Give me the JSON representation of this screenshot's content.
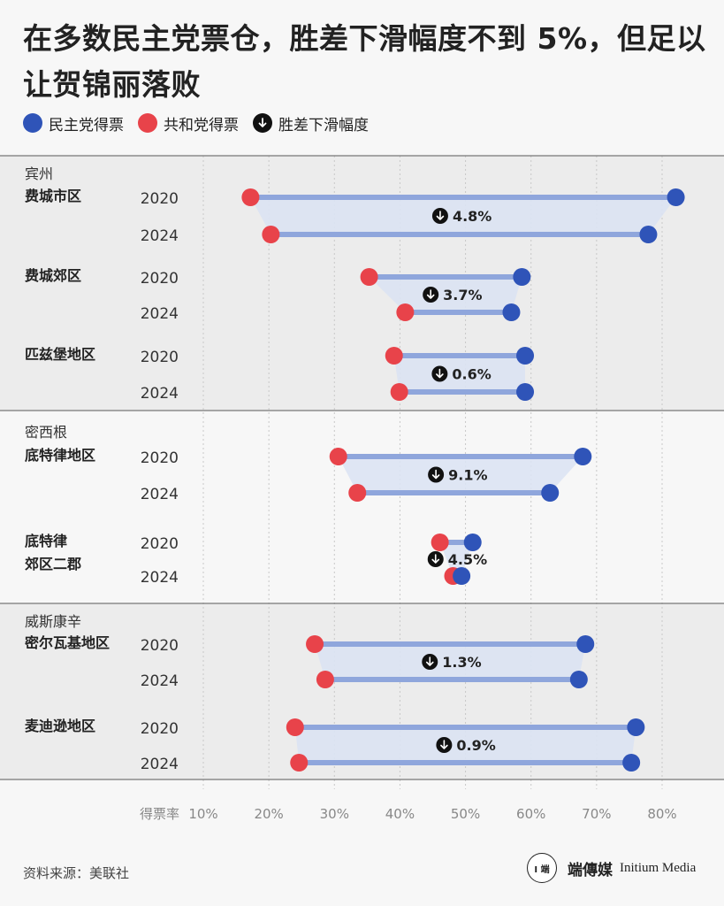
{
  "title": "在多数民主党票仓，胜差下滑幅度不到 5%，但足以让贺锦丽落败",
  "legend": [
    {
      "label": "民主党得票",
      "color": "#2f54b8"
    },
    {
      "label": "共和党得票",
      "color": "#e8434a"
    },
    {
      "label": "胜差下滑幅度",
      "icon": "arrow-down-icon"
    }
  ],
  "colors": {
    "dem": "#2f54b8",
    "rep": "#e8434a",
    "bar": "#8fa6dc",
    "band": "#dce3f3",
    "arrow": "#111111"
  },
  "chart_data": {
    "type": "dumbbell",
    "x_axis_label": "得票率",
    "x_range": [
      10,
      80
    ],
    "x_ticks": [
      "10%",
      "20%",
      "30%",
      "40%",
      "50%",
      "60%",
      "70%",
      "80%"
    ],
    "years": [
      "2020",
      "2024"
    ],
    "groups": [
      {
        "state": "宾州",
        "shaded": true,
        "regions": [
          {
            "name": [
              "费城市区"
            ],
            "dem": [
              82.1,
              77.9
            ],
            "rep": [
              17.2,
              20.3
            ],
            "decline": "4.8%"
          },
          {
            "name": [
              "费城郊区"
            ],
            "dem": [
              58.6,
              57.0
            ],
            "rep": [
              35.3,
              40.8
            ],
            "decline": "3.7%"
          },
          {
            "name": [
              "匹兹堡地区"
            ],
            "dem": [
              59.1,
              59.1
            ],
            "rep": [
              39.1,
              39.9
            ],
            "decline": "0.6%"
          }
        ]
      },
      {
        "state": "密西根",
        "shaded": false,
        "regions": [
          {
            "name": [
              "底特律地区"
            ],
            "dem": [
              67.9,
              62.9
            ],
            "rep": [
              30.6,
              33.5
            ],
            "decline": "9.1%"
          },
          {
            "name": [
              "底特律",
              "郊区二郡"
            ],
            "dem": [
              51.1,
              49.4
            ],
            "rep": [
              46.1,
              48.1
            ],
            "decline": "4.5%"
          }
        ]
      },
      {
        "state": "威斯康辛",
        "shaded": true,
        "regions": [
          {
            "name": [
              "密尔瓦基地区"
            ],
            "dem": [
              68.3,
              67.3
            ],
            "rep": [
              27.0,
              28.6
            ],
            "decline": "1.3%"
          },
          {
            "name": [
              "麦迪逊地区"
            ],
            "dem": [
              76.0,
              75.3
            ],
            "rep": [
              24.0,
              24.6
            ],
            "decline": "0.9%"
          }
        ]
      }
    ]
  },
  "footer": {
    "source": "资料来源：美联社",
    "brand_logo": "I 端",
    "brand_zh": "端傳媒",
    "brand_en": "Initium Media"
  }
}
